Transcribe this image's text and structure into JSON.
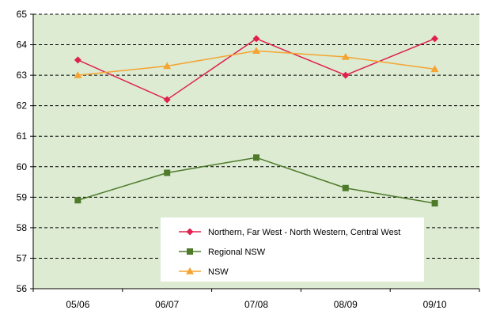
{
  "chart_data": {
    "type": "line",
    "categories": [
      "05/06",
      "06/07",
      "07/08",
      "08/09",
      "09/10"
    ],
    "ylim": [
      56,
      65
    ],
    "yticks": [
      56,
      57,
      58,
      59,
      60,
      61,
      62,
      63,
      64,
      65
    ],
    "grid": "horizontal dashed",
    "legend_position": "lower-right",
    "plot_background": "#dcebd2",
    "series": [
      {
        "name": "Northern, Far West - North Western, Central West",
        "color": "#e0204e",
        "marker": "diamond",
        "values": [
          63.5,
          62.2,
          64.2,
          63.0,
          64.2
        ]
      },
      {
        "name": "Regional NSW",
        "color": "#4e7a2a",
        "marker": "square",
        "values": [
          58.9,
          59.8,
          60.3,
          59.3,
          58.8
        ]
      },
      {
        "name": "NSW",
        "color": "#f5a431",
        "marker": "triangle",
        "values": [
          63.0,
          63.3,
          63.8,
          63.6,
          63.2
        ]
      }
    ]
  }
}
